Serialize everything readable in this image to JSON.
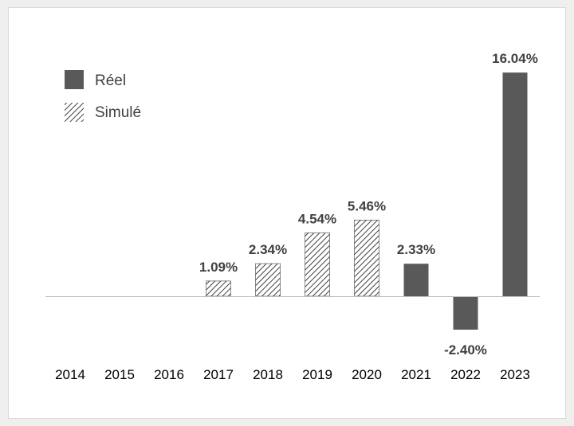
{
  "chart_data": {
    "type": "bar",
    "title": "",
    "xlabel": "",
    "ylabel": "",
    "categories": [
      "2014",
      "2015",
      "2016",
      "2017",
      "2018",
      "2019",
      "2020",
      "2021",
      "2022",
      "2023"
    ],
    "series": [
      {
        "name": "Réel",
        "style": "solid",
        "color": "#595959",
        "values": [
          null,
          null,
          null,
          null,
          null,
          null,
          null,
          2.33,
          -2.4,
          16.04
        ]
      },
      {
        "name": "Simulé",
        "style": "hatched",
        "color": "#404040",
        "values": [
          null,
          null,
          null,
          1.09,
          2.34,
          4.54,
          5.46,
          null,
          null,
          null
        ]
      }
    ],
    "data_labels": [
      "",
      "",
      "",
      "1.09%",
      "2.34%",
      "4.54%",
      "5.46%",
      "2.33%",
      "-2.40%",
      "16.04%"
    ],
    "ylim": [
      -3,
      17
    ],
    "grid": false,
    "legend_position": "top-left"
  }
}
